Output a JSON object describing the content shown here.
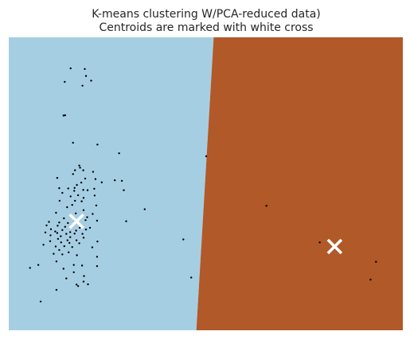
{
  "chart_data": {
    "type": "scatter",
    "title_line1": "K-means clustering W/PCA-reduced data)",
    "title_line2": "Centroids are marked with white cross",
    "xlabel": "",
    "ylabel": "",
    "xlim": [
      0,
      100
    ],
    "ylim": [
      0,
      100
    ],
    "grid": false,
    "ticks": false,
    "regions": [
      {
        "name": "cluster-0",
        "color": "#a6cee3"
      },
      {
        "name": "cluster-1",
        "color": "#b15928"
      }
    ],
    "boundary": [
      [
        52.0,
        100
      ],
      [
        47.6,
        0
      ]
    ],
    "point_color": "#000000",
    "centroid_color": "#ffffff",
    "points": [
      [
        15.7,
        89.4
      ],
      [
        19.3,
        89.2
      ],
      [
        19.6,
        86.8
      ],
      [
        20.9,
        85.2
      ],
      [
        14.2,
        84.8
      ],
      [
        18.7,
        83.5
      ],
      [
        13.9,
        73.3
      ],
      [
        14.3,
        73.4
      ],
      [
        16.3,
        64.0
      ],
      [
        22.5,
        63.4
      ],
      [
        28.0,
        60.4
      ],
      [
        50.1,
        59.4
      ],
      [
        18.1,
        55.5
      ],
      [
        17.9,
        56.2
      ],
      [
        18.9,
        54.6
      ],
      [
        16.8,
        54.6
      ],
      [
        21.4,
        54.1
      ],
      [
        16.3,
        53.3
      ],
      [
        12.3,
        52.0
      ],
      [
        19.4,
        51.8
      ],
      [
        22.0,
        51.6
      ],
      [
        26.9,
        51.2
      ],
      [
        28.7,
        51.0
      ],
      [
        18.4,
        50.4
      ],
      [
        23.6,
        50.5
      ],
      [
        17.3,
        49.6
      ],
      [
        16.7,
        48.6
      ],
      [
        15.1,
        48.4
      ],
      [
        12.8,
        48.5
      ],
      [
        21.7,
        48.3
      ],
      [
        18.9,
        47.9
      ],
      [
        16.6,
        47.6
      ],
      [
        20.0,
        47.8
      ],
      [
        29.2,
        47.8
      ],
      [
        13.6,
        46.9
      ],
      [
        17.6,
        46.1
      ],
      [
        15.7,
        45.7
      ],
      [
        21.8,
        46.0
      ],
      [
        19.0,
        45.2
      ],
      [
        12.9,
        44.2
      ],
      [
        16.8,
        44.2
      ],
      [
        18.5,
        44.0
      ],
      [
        16.1,
        42.8
      ],
      [
        22.2,
        42.6
      ],
      [
        34.5,
        41.3
      ],
      [
        65.4,
        42.5
      ],
      [
        14.8,
        42.0
      ],
      [
        19.0,
        41.0
      ],
      [
        12.0,
        40.1
      ],
      [
        17.0,
        39.9
      ],
      [
        21.3,
        39.7
      ],
      [
        19.9,
        38.6
      ],
      [
        14.0,
        38.2
      ],
      [
        16.6,
        37.6
      ],
      [
        19.5,
        37.6
      ],
      [
        22.4,
        37.4
      ],
      [
        29.8,
        37.2
      ],
      [
        10.2,
        37.0
      ],
      [
        12.8,
        36.8
      ],
      [
        15.0,
        36.6
      ],
      [
        17.8,
        36.2
      ],
      [
        9.6,
        35.8
      ],
      [
        12.4,
        35.7
      ],
      [
        14.3,
        35.3
      ],
      [
        16.0,
        35.4
      ],
      [
        18.0,
        35.0
      ],
      [
        20.6,
        35.0
      ],
      [
        10.7,
        34.5
      ],
      [
        13.6,
        34.2
      ],
      [
        17.1,
        34.0
      ],
      [
        19.6,
        34.4
      ],
      [
        11.8,
        33.7
      ],
      [
        15.6,
        33.5
      ],
      [
        9.3,
        33.4
      ],
      [
        12.3,
        33.2
      ],
      [
        14.6,
        32.9
      ],
      [
        16.7,
        33.0
      ],
      [
        18.7,
        32.9
      ],
      [
        10.6,
        32.4
      ],
      [
        13.2,
        32.1
      ],
      [
        15.6,
        31.8
      ],
      [
        19.0,
        31.6
      ],
      [
        12.5,
        31.2
      ],
      [
        14.9,
        30.7
      ],
      [
        17.2,
        30.7
      ],
      [
        10.5,
        30.4
      ],
      [
        13.3,
        30.0
      ],
      [
        15.4,
        29.8
      ],
      [
        17.9,
        29.7
      ],
      [
        22.5,
        30.3
      ],
      [
        8.8,
        29.2
      ],
      [
        11.9,
        28.6
      ],
      [
        14.1,
        28.7
      ],
      [
        16.1,
        28.4
      ],
      [
        21.2,
        28.3
      ],
      [
        12.8,
        27.4
      ],
      [
        15.2,
        26.6
      ],
      [
        11.4,
        26.1
      ],
      [
        13.6,
        25.9
      ],
      [
        17.3,
        25.6
      ],
      [
        22.4,
        25.1
      ],
      [
        44.3,
        31.0
      ],
      [
        78.9,
        30.0
      ],
      [
        12.1,
        23.5
      ],
      [
        16.5,
        22.3
      ],
      [
        18.6,
        22.1
      ],
      [
        22.4,
        21.9
      ],
      [
        13.9,
        21.0
      ],
      [
        16.5,
        19.8
      ],
      [
        19.1,
        18.5
      ],
      [
        14.6,
        17.7
      ],
      [
        19.0,
        16.6
      ],
      [
        20.1,
        15.7
      ],
      [
        5.4,
        21.3
      ],
      [
        7.5,
        22.3
      ],
      [
        17.2,
        15.6
      ],
      [
        17.6,
        15.1
      ],
      [
        46.3,
        18.0
      ],
      [
        12.1,
        13.8
      ],
      [
        8.1,
        9.8
      ],
      [
        93.2,
        23.4
      ],
      [
        91.8,
        17.3
      ]
    ],
    "centroids": [
      [
        17.2,
        37.2
      ],
      [
        82.7,
        28.6
      ]
    ]
  }
}
